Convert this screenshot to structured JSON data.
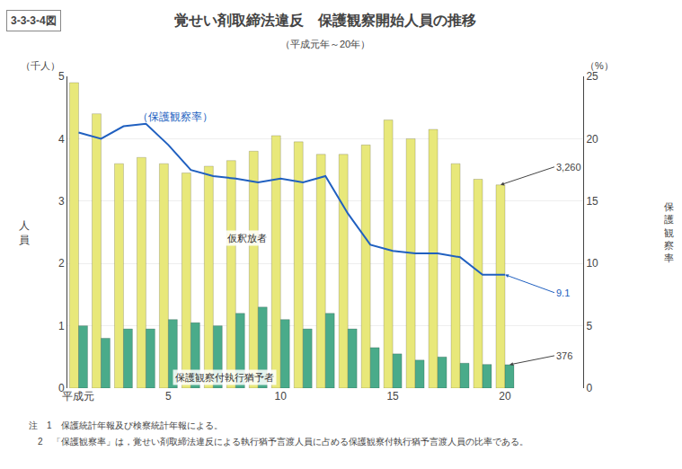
{
  "chart_data": {
    "type": "bar",
    "figure_number": "3-3-3-4図",
    "title": "覚せい剤取締法違反　保護観察開始人員の推移",
    "subtitle": "（平成元年～20年）",
    "categories": [
      "平成元",
      null,
      null,
      null,
      "5",
      null,
      null,
      null,
      null,
      "10",
      null,
      null,
      null,
      null,
      "15",
      null,
      null,
      null,
      null,
      "20"
    ],
    "series": [
      {
        "name": "仮釈放者",
        "color": "#e8e87a",
        "values": [
          4.9,
          4.4,
          3.6,
          3.7,
          3.6,
          3.45,
          3.56,
          3.65,
          3.8,
          4.05,
          3.95,
          3.75,
          3.75,
          3.9,
          4.3,
          4.0,
          4.15,
          3.6,
          3.35,
          3.26
        ]
      },
      {
        "name": "保護観察付執行猶予者",
        "color": "#4aab8a",
        "values": [
          1.0,
          0.8,
          0.95,
          0.95,
          1.1,
          1.05,
          1.0,
          1.2,
          1.3,
          1.1,
          0.95,
          1.2,
          0.95,
          0.65,
          0.55,
          0.45,
          0.5,
          0.4,
          0.38,
          0.376
        ]
      },
      {
        "name": "（保護観察率）",
        "type": "line",
        "axis": "y2",
        "color": "#2060c0",
        "values": [
          20.5,
          20.0,
          21.0,
          21.2,
          19.5,
          17.5,
          17.0,
          16.8,
          16.5,
          16.8,
          16.5,
          17.0,
          14.0,
          11.5,
          11.0,
          10.8,
          10.8,
          10.5,
          9.1,
          9.1
        ]
      }
    ],
    "ylabel": "人員",
    "yunit": "（千人）",
    "y2label": "保護観察率",
    "y2unit": "（%）",
    "ylim": [
      0,
      5
    ],
    "yticks": [
      0,
      1,
      2,
      3,
      4,
      5
    ],
    "y2lim": [
      0,
      25
    ],
    "y2ticks": [
      0,
      5,
      10,
      15,
      20,
      25
    ],
    "grid": true,
    "legend": "none",
    "annotations": [
      {
        "text": "3,260",
        "series": "仮釈放者",
        "category_index": 19
      },
      {
        "text": "376",
        "series": "保護観察付執行猶予者",
        "category_index": 19
      },
      {
        "text": "9.1",
        "series": "（保護観察率）",
        "category_index": 19
      }
    ],
    "notes": [
      "注　1　保護統計年報及び検察統計年報による。",
      "　2　「保護観察率」は，覚せい剤取締法違反による執行猶予言渡人員に占める保護観察付執行猶予言渡人員の比率である。"
    ]
  }
}
